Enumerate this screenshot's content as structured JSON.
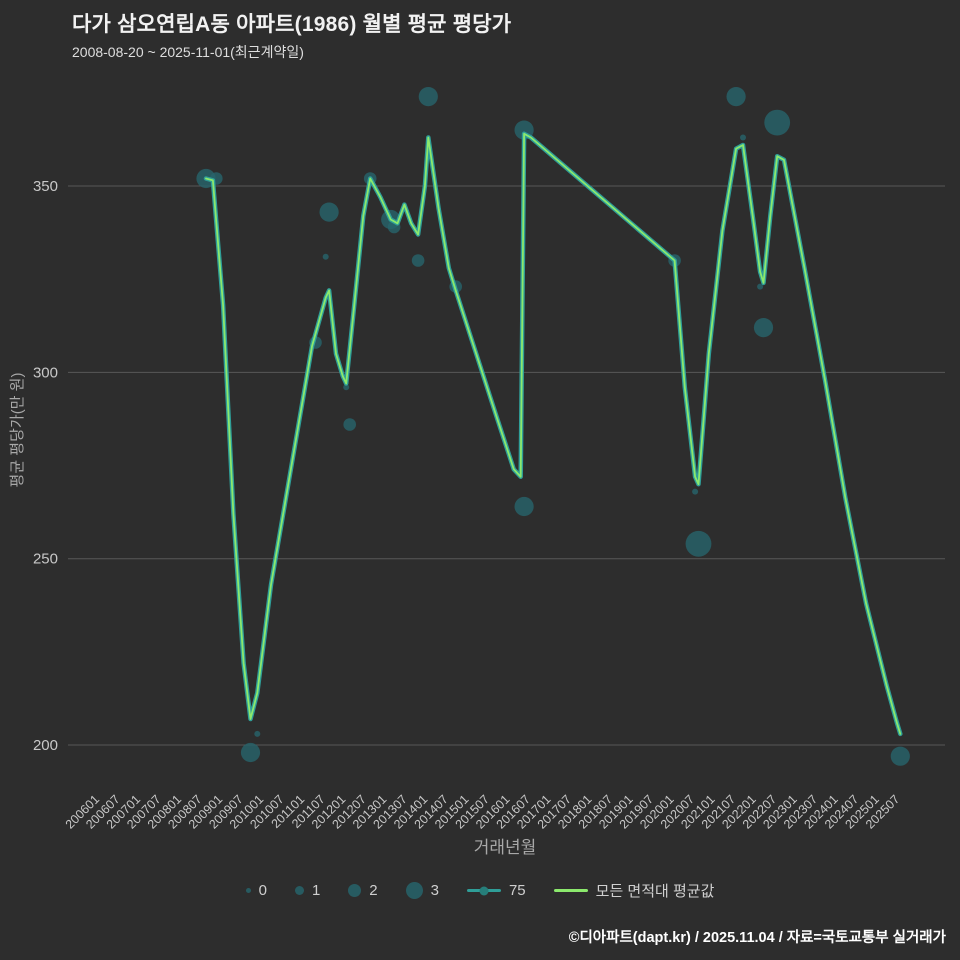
{
  "header": {
    "title": "다가 삼오연립A동 아파트(1986) 월별 평균 평당가",
    "subtitle": "2008-08-20 ~ 2025-11-01(최근계약일)"
  },
  "chart_data": {
    "type": "line",
    "title": "다가 삼오연립A동 아파트(1986) 월별 평균 평당가",
    "xlabel": "거래년월",
    "ylabel": "평균 평당가(만 원)",
    "ylim": [
      188,
      378
    ],
    "y_ticks": [
      200,
      250,
      300,
      350
    ],
    "grid": true,
    "x_tick_labels": [
      "200601",
      "200607",
      "200701",
      "200707",
      "200801",
      "200807",
      "200901",
      "200907",
      "201001",
      "201007",
      "201101",
      "201107",
      "201201",
      "201207",
      "201301",
      "201307",
      "201401",
      "201407",
      "201501",
      "201507",
      "201601",
      "201607",
      "201701",
      "201707",
      "201801",
      "201807",
      "201901",
      "201907",
      "202001",
      "202007",
      "202101",
      "202107",
      "202201",
      "202207",
      "202301",
      "202307",
      "202401",
      "202407",
      "202501",
      "202507"
    ],
    "series": [
      {
        "name": "75",
        "color": "#2f9e98",
        "dot": true
      },
      {
        "name": "모든 면적대 평균값",
        "color": "#8ce96d",
        "dot": false
      }
    ],
    "line_points": [
      [
        "2008-08",
        352
      ],
      [
        "2008-10",
        351.5
      ],
      [
        "2009-01",
        318
      ],
      [
        "2009-04",
        262
      ],
      [
        "2009-07",
        222
      ],
      [
        "2009-09",
        207
      ],
      [
        "2009-11",
        214
      ],
      [
        "2010-03",
        243
      ],
      [
        "2010-09",
        275
      ],
      [
        "2011-03",
        307
      ],
      [
        "2011-07",
        320
      ],
      [
        "2011-08",
        322
      ],
      [
        "2011-10",
        305
      ],
      [
        "2011-12",
        299
      ],
      [
        "2012-01",
        297
      ],
      [
        "2012-03",
        315
      ],
      [
        "2012-06",
        342
      ],
      [
        "2012-08",
        352
      ],
      [
        "2012-11",
        347
      ],
      [
        "2013-02",
        341
      ],
      [
        "2013-04",
        340
      ],
      [
        "2013-06",
        345
      ],
      [
        "2013-08",
        340
      ],
      [
        "2013-10",
        337
      ],
      [
        "2013-12",
        350
      ],
      [
        "2014-01",
        363
      ],
      [
        "2014-04",
        344
      ],
      [
        "2014-07",
        328
      ],
      [
        "2014-09",
        322
      ],
      [
        "2015-03",
        305
      ],
      [
        "2015-09",
        288
      ],
      [
        "2016-02",
        274
      ],
      [
        "2016-04",
        272
      ],
      [
        "2016-05",
        364
      ],
      [
        "2016-07",
        363
      ],
      [
        "2020-01",
        330
      ],
      [
        "2020-04",
        296
      ],
      [
        "2020-07",
        272
      ],
      [
        "2020-08",
        270
      ],
      [
        "2020-11",
        305
      ],
      [
        "2021-03",
        338
      ],
      [
        "2021-07",
        360
      ],
      [
        "2021-09",
        361
      ],
      [
        "2021-12",
        341
      ],
      [
        "2022-02",
        327
      ],
      [
        "2022-03",
        324
      ],
      [
        "2022-05",
        342
      ],
      [
        "2022-07",
        358
      ],
      [
        "2022-09",
        357
      ],
      [
        "2023-03",
        328
      ],
      [
        "2023-09",
        298
      ],
      [
        "2024-03",
        266
      ],
      [
        "2024-09",
        238
      ],
      [
        "2025-03",
        216
      ],
      [
        "2025-06",
        206
      ],
      [
        "2025-07",
        203
      ]
    ],
    "bubbles": [
      [
        "2008-08",
        352,
        2
      ],
      [
        "2008-11",
        352,
        1
      ],
      [
        "2009-09",
        198,
        2
      ],
      [
        "2009-11",
        203,
        0
      ],
      [
        "2011-04",
        308,
        1
      ],
      [
        "2011-08",
        343,
        2
      ],
      [
        "2011-07",
        331,
        0
      ],
      [
        "2012-01",
        296,
        0
      ],
      [
        "2012-02",
        286,
        1
      ],
      [
        "2012-08",
        352,
        1
      ],
      [
        "2013-02",
        341,
        2
      ],
      [
        "2013-03",
        339,
        1
      ],
      [
        "2013-10",
        330,
        1
      ],
      [
        "2014-01",
        374,
        2
      ],
      [
        "2014-09",
        323,
        1
      ],
      [
        "2016-05",
        365,
        2
      ],
      [
        "2016-05",
        264,
        2
      ],
      [
        "2020-01",
        330,
        1
      ],
      [
        "2020-07",
        268,
        0
      ],
      [
        "2020-08",
        254,
        3
      ],
      [
        "2021-07",
        374,
        2
      ],
      [
        "2021-09",
        363,
        0
      ],
      [
        "2022-02",
        323,
        0
      ],
      [
        "2022-03",
        312,
        2
      ],
      [
        "2022-07",
        367,
        3
      ],
      [
        "2025-07",
        197,
        2
      ]
    ],
    "legend": {
      "sizes": [
        {
          "label": "0",
          "size": 0
        },
        {
          "label": "1",
          "size": 1
        },
        {
          "label": "2",
          "size": 2
        },
        {
          "label": "3",
          "size": 3
        }
      ],
      "series_labels": [
        "75",
        "모든 면적대 평균값"
      ]
    },
    "colors": {
      "background": "#2d2d2d",
      "grid": "#585858",
      "tick_text": "#c8c8c8",
      "axis_title": "#a8a8a8",
      "bubble": "#27646b",
      "line_outer": "#2f9e98",
      "line_inner": "#8ce96d"
    }
  },
  "footer": {
    "credit": "©디아파트(dapt.kr) / 2025.11.04 / 자료=국토교통부 실거래가"
  }
}
